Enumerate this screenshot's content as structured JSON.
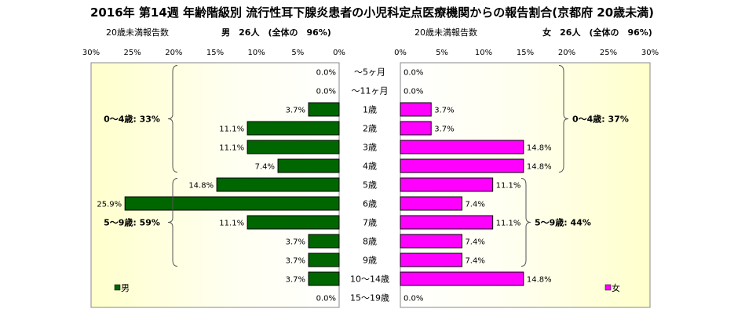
{
  "chart_data": {
    "type": "bar",
    "title": "2016年 第14週 年齢階級別 流行性耳下腺炎患者の小児科定点医療機関からの報告割合(京都府 20歳未満)",
    "left_panel": {
      "subtitle": "20歳未満報告数",
      "header": "男　26人　(全体の　96%)",
      "axis_ticks": [
        "30%",
        "25%",
        "20%",
        "15%",
        "10%",
        "5%",
        "0%"
      ],
      "xlim": [
        0,
        30
      ],
      "legend": "男",
      "bar_color": "#006600",
      "groups": [
        {
          "label": "0～4歳: 33%",
          "from": 0,
          "to": 5
        },
        {
          "label": "5～9歳: 59%",
          "from": 6,
          "to": 10
        }
      ]
    },
    "right_panel": {
      "subtitle": "20歳未満報告数",
      "header": "女　26人　(全体の　96%)",
      "axis_ticks": [
        "0%",
        "5%",
        "10%",
        "15%",
        "20%",
        "25%",
        "30%"
      ],
      "xlim": [
        0,
        30
      ],
      "legend": "女",
      "bar_color": "#ff00ff",
      "groups": [
        {
          "label": "0～4歳: 37%",
          "from": 0,
          "to": 5
        },
        {
          "label": "5～9歳: 44%",
          "from": 6,
          "to": 10
        }
      ]
    },
    "categories": [
      "～5ヶ月",
      "～11ヶ月",
      "1歳",
      "2歳",
      "3歳",
      "4歳",
      "5歳",
      "6歳",
      "7歳",
      "8歳",
      "9歳",
      "10～14歳",
      "15～19歳"
    ],
    "series": [
      {
        "name": "男",
        "values": [
          0.0,
          0.0,
          3.7,
          11.1,
          11.1,
          7.4,
          14.8,
          25.9,
          11.1,
          3.7,
          3.7,
          3.7,
          0.0
        ],
        "labels": [
          "0.0%",
          "0.0%",
          "3.7%",
          "11.1%",
          "11.1%",
          "7.4%",
          "14.8%",
          "25.9%",
          "11.1%",
          "3.7%",
          "3.7%",
          "3.7%",
          "0.0%"
        ]
      },
      {
        "name": "女",
        "values": [
          0.0,
          0.0,
          3.7,
          3.7,
          14.8,
          14.8,
          11.1,
          7.4,
          11.1,
          7.4,
          7.4,
          14.8,
          0.0
        ],
        "labels": [
          "0.0%",
          "0.0%",
          "3.7%",
          "3.7%",
          "14.8%",
          "14.8%",
          "11.1%",
          "7.4%",
          "11.1%",
          "7.4%",
          "7.4%",
          "14.8%",
          "0.0%"
        ]
      }
    ]
  }
}
